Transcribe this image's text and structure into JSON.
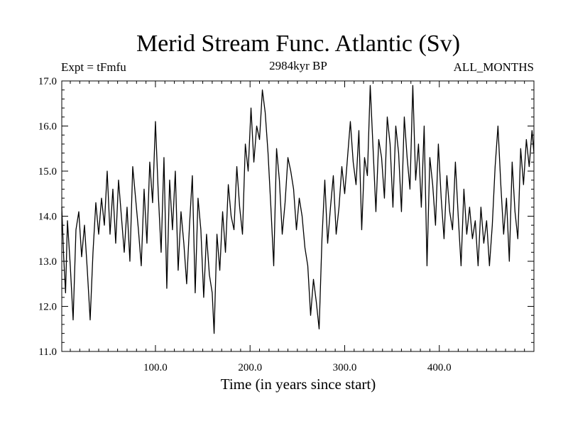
{
  "chart_data": {
    "type": "line",
    "title": "Merid Stream Func. Atlantic (Sv)",
    "subtitle_left": "Expt = tFmfu",
    "subtitle_center": "2984kyr BP",
    "subtitle_right": "ALL_MONTHS",
    "xlabel": "Time (in years since start)",
    "ylabel": "",
    "xlim": [
      1,
      500
    ],
    "ylim": [
      11.0,
      17.0
    ],
    "x_ticks": [
      100,
      200,
      300,
      400
    ],
    "x_tick_labels": [
      "100.0",
      "200.0",
      "300.0",
      "400.0"
    ],
    "y_ticks": [
      11,
      12,
      13,
      14,
      15,
      16,
      17
    ],
    "y_tick_labels": [
      "11.0",
      "12.0",
      "13.0",
      "14.0",
      "15.0",
      "16.0",
      "17.0"
    ],
    "grid": false,
    "line_color": "#000000",
    "series": [
      {
        "name": "Merid Stream Func. Atlantic",
        "x": [
          1,
          3,
          5,
          7,
          10,
          13,
          16,
          19,
          22,
          25,
          28,
          31,
          34,
          37,
          40,
          43,
          46,
          49,
          52,
          55,
          58,
          61,
          64,
          67,
          70,
          73,
          76,
          79,
          82,
          85,
          88,
          91,
          94,
          97,
          100,
          103,
          106,
          109,
          112,
          115,
          118,
          121,
          124,
          127,
          130,
          133,
          136,
          139,
          142,
          145,
          148,
          151,
          154,
          157,
          160,
          162,
          165,
          168,
          171,
          174,
          177,
          180,
          183,
          186,
          189,
          192,
          195,
          198,
          201,
          204,
          207,
          210,
          213,
          216,
          219,
          222,
          225,
          228,
          231,
          234,
          237,
          240,
          243,
          246,
          249,
          252,
          255,
          258,
          261,
          264,
          267,
          270,
          273,
          276,
          279,
          282,
          285,
          288,
          291,
          294,
          297,
          300,
          303,
          306,
          309,
          312,
          315,
          318,
          321,
          324,
          327,
          330,
          333,
          336,
          339,
          342,
          345,
          348,
          351,
          354,
          357,
          360,
          363,
          366,
          369,
          372,
          375,
          378,
          381,
          384,
          387,
          390,
          393,
          396,
          399,
          402,
          405,
          408,
          411,
          414,
          417,
          420,
          423,
          426,
          429,
          432,
          435,
          438,
          441,
          444,
          447,
          450,
          453,
          456,
          459,
          462,
          465,
          468,
          471,
          474,
          477,
          480,
          483,
          486,
          489,
          492,
          495,
          498,
          500
        ],
        "y": [
          14.2,
          13.1,
          12.3,
          13.9,
          12.9,
          11.7,
          13.7,
          14.1,
          13.1,
          13.8,
          12.8,
          11.7,
          13.2,
          14.3,
          13.6,
          14.4,
          13.8,
          15.0,
          13.6,
          14.6,
          13.4,
          14.8,
          14.0,
          13.2,
          14.2,
          13.0,
          15.1,
          14.4,
          13.7,
          12.9,
          14.6,
          13.4,
          15.2,
          14.3,
          16.1,
          14.5,
          13.2,
          15.3,
          12.4,
          14.8,
          13.7,
          15.0,
          12.8,
          14.1,
          13.4,
          12.5,
          13.8,
          14.9,
          12.3,
          14.4,
          13.7,
          12.2,
          13.6,
          12.7,
          12.3,
          11.4,
          13.6,
          12.8,
          14.1,
          13.2,
          14.7,
          14.0,
          13.7,
          15.1,
          14.2,
          13.6,
          15.6,
          15.0,
          16.4,
          15.2,
          16.0,
          15.7,
          16.8,
          16.3,
          15.4,
          14.2,
          12.9,
          15.5,
          14.8,
          13.6,
          14.3,
          15.3,
          15.0,
          14.6,
          13.7,
          14.4,
          14.0,
          13.3,
          12.9,
          11.8,
          12.6,
          12.1,
          11.5,
          13.5,
          14.8,
          13.4,
          14.2,
          14.9,
          13.6,
          14.2,
          15.1,
          14.5,
          15.3,
          16.1,
          15.2,
          14.7,
          15.9,
          13.7,
          15.3,
          14.9,
          16.9,
          15.5,
          14.1,
          15.7,
          15.3,
          14.4,
          16.2,
          15.6,
          14.2,
          16.0,
          15.4,
          14.1,
          16.2,
          15.3,
          14.6,
          16.9,
          14.8,
          15.6,
          14.2,
          16.0,
          12.9,
          15.3,
          14.7,
          13.8,
          15.6,
          14.4,
          13.5,
          14.9,
          14.1,
          13.7,
          15.2,
          14.0,
          12.9,
          14.6,
          13.6,
          14.2,
          13.5,
          13.9,
          12.9,
          14.2,
          13.4,
          13.9,
          12.9,
          13.8,
          15.1,
          16.0,
          14.7,
          13.6,
          14.4,
          13.0,
          15.2,
          14.1,
          13.5,
          15.5,
          14.7,
          15.7,
          15.1,
          15.9,
          15.4
        ]
      }
    ]
  }
}
